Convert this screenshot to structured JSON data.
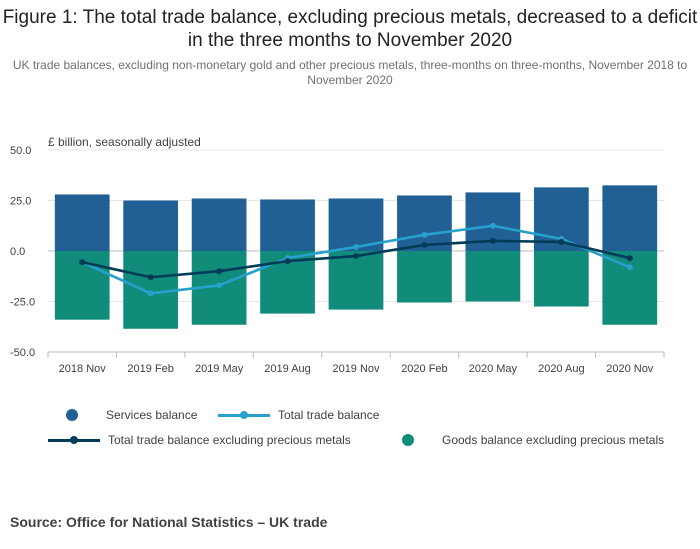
{
  "title": "Figure 1: The total trade balance, excluding precious metals, decreased to a deficit in the three months to November 2020",
  "subtitle": "UK trade balances, excluding non-monetary gold and other precious metals, three-months on three-months, November 2018 to November 2020",
  "source": "Source: Office for National Statistics – UK trade",
  "colors": {
    "services": "#206095",
    "goods": "#118c7b",
    "total": "#27a0cc",
    "total_excl": "#003c57",
    "grid": "#e6e6e6",
    "axis": "#bcbcbc"
  },
  "chart_data": {
    "type": "bar",
    "title": "Figure 1: The total trade balance, excluding precious metals, decreased to a deficit in the three months to November 2020",
    "ylabel": "£ billion, seasonally adjusted",
    "xlabel": "",
    "ylim": [
      -50,
      50
    ],
    "yticks": [
      {
        "value": 50,
        "label": "50.0"
      },
      {
        "value": 25,
        "label": "25.0"
      },
      {
        "value": 0,
        "label": "0.0"
      },
      {
        "value": -25,
        "label": "-25.0"
      },
      {
        "value": -50,
        "label": "-50.0"
      }
    ],
    "grid": true,
    "legend": "bottom",
    "categories": [
      "2018 Nov",
      "2019 Feb",
      "2019 May",
      "2019 Aug",
      "2019 Nov",
      "2020 Feb",
      "2020 May",
      "2020 Aug",
      "2020 Nov"
    ],
    "series": [
      {
        "name": "Services balance",
        "type": "bar",
        "values": [
          28.0,
          25.0,
          26.0,
          25.5,
          26.0,
          27.5,
          29.0,
          31.5,
          32.5
        ]
      },
      {
        "name": "Goods balance excluding precious metals",
        "type": "bar",
        "values": [
          -34.0,
          -38.5,
          -36.5,
          -31.0,
          -29.0,
          -25.5,
          -25.0,
          -27.5,
          -36.5
        ]
      },
      {
        "name": "Total trade balance",
        "type": "line",
        "values": [
          -5.5,
          -21.0,
          -17.0,
          -3.5,
          2.0,
          8.0,
          12.5,
          6.0,
          -8.0
        ]
      },
      {
        "name": "Total trade balance excluding precious metals",
        "type": "line",
        "values": [
          -5.5,
          -13.0,
          -10.0,
          -5.0,
          -2.5,
          3.0,
          5.0,
          4.5,
          -3.5
        ]
      }
    ]
  },
  "legend": {
    "services": "Services balance",
    "total": "Total trade balance",
    "total_excl": "Total trade balance excluding precious metals",
    "goods": "Goods balance excluding precious metals"
  }
}
